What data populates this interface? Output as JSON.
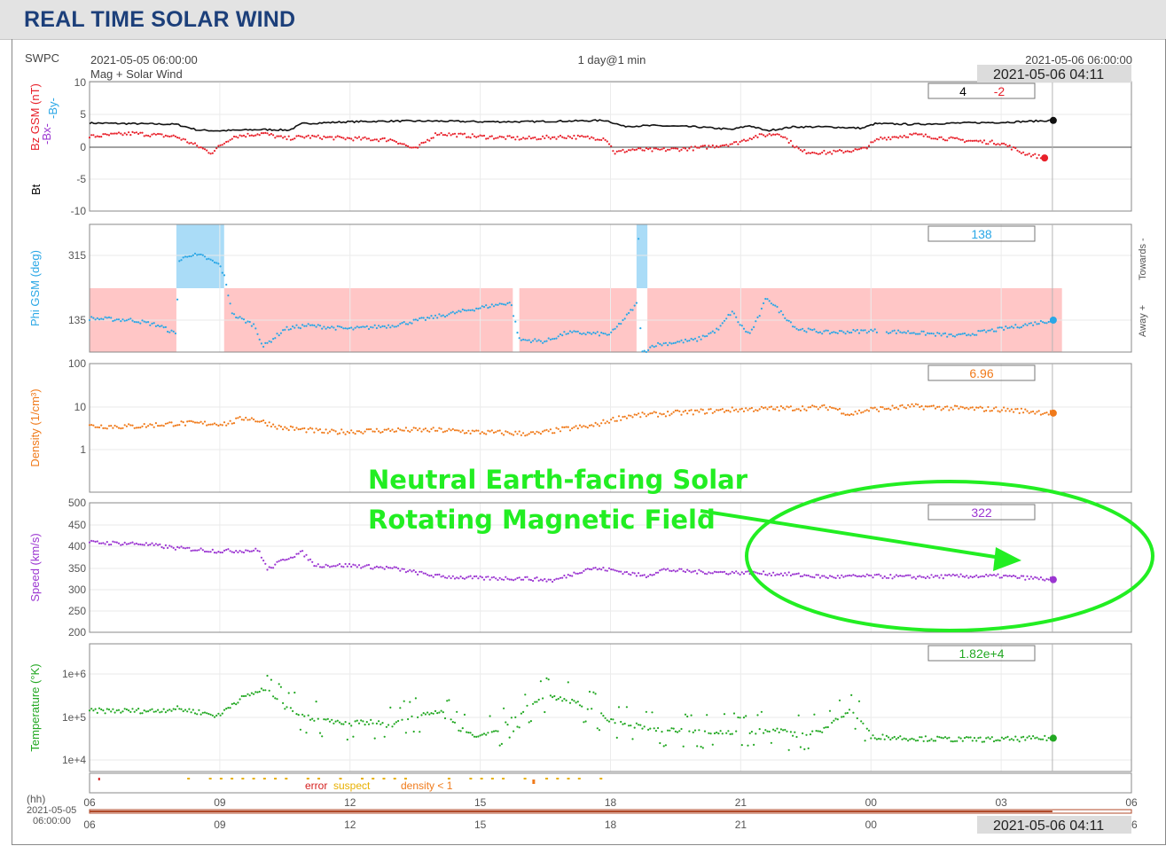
{
  "header": {
    "title": "REAL TIME SOLAR WIND"
  },
  "chart_data": {
    "type": "scatter",
    "source_label": "SWPC",
    "start_label": "2021-05-05 06:00:00",
    "subtitle": "Mag + Solar Wind",
    "window_label": "1 day@1 min",
    "end_label": "2021-05-06 06:00:00",
    "cursor_time": "2021-05-06 04:11",
    "x_axis": {
      "unit_label": "(hh)",
      "ticks": [
        "06",
        "09",
        "12",
        "15",
        "18",
        "21",
        "00",
        "03",
        "06"
      ],
      "start_date": "2021-05-05",
      "start_time": "06:00:00",
      "hours_range": [
        0,
        24
      ],
      "cursor_hour": 22.18
    },
    "panels": [
      {
        "id": "mag",
        "ylabels": [
          {
            "text": "Bt",
            "color": "#000000"
          },
          {
            "text": "Bz GSM (nT)",
            "color": "#e8202a"
          },
          {
            "text": "-Bx-",
            "color": "#9b35d1"
          },
          {
            "text": "-By-",
            "color": "#2aa7e6"
          }
        ],
        "yticks": [
          "10",
          "5",
          "0",
          "-5",
          "-10"
        ],
        "ylim": [
          -10,
          10
        ],
        "current": [
          "4",
          "-2"
        ],
        "current_colors": [
          "#000000",
          "#e8202a"
        ],
        "series": [
          {
            "name": "Bt",
            "color": "#111111",
            "style": "line",
            "points": [
              [
                0,
                3.6
              ],
              [
                1,
                3.5
              ],
              [
                2,
                3.4
              ],
              [
                2.5,
                2.5
              ],
              [
                3,
                2.4
              ],
              [
                4,
                2.6
              ],
              [
                4.6,
                2.5
              ],
              [
                4.9,
                3.5
              ],
              [
                6,
                3.8
              ],
              [
                7,
                3.9
              ],
              [
                8,
                3.9
              ],
              [
                9,
                3.8
              ],
              [
                10,
                3.8
              ],
              [
                11,
                3.9
              ],
              [
                11.9,
                4.0
              ],
              [
                12.3,
                3.1
              ],
              [
                13,
                3.2
              ],
              [
                14,
                3.0
              ],
              [
                14.8,
                2.6
              ],
              [
                15.2,
                3.2
              ],
              [
                15.6,
                2.4
              ],
              [
                16.2,
                3.0
              ],
              [
                17,
                3.0
              ],
              [
                17.8,
                2.8
              ],
              [
                18.1,
                3.5
              ],
              [
                19,
                3.4
              ],
              [
                20,
                3.6
              ],
              [
                21,
                3.7
              ],
              [
                22.2,
                4.0
              ]
            ]
          },
          {
            "name": "Bz",
            "color": "#e8202a",
            "style": "dots",
            "points": [
              [
                0,
                1.5
              ],
              [
                1,
                2.0
              ],
              [
                2,
                1.5
              ],
              [
                2.5,
                0
              ],
              [
                2.8,
                -1
              ],
              [
                3.3,
                1.5
              ],
              [
                4,
                2.0
              ],
              [
                4.5,
                1.2
              ],
              [
                5,
                1.5
              ],
              [
                6,
                1.2
              ],
              [
                7,
                1.0
              ],
              [
                7.5,
                -0.5
              ],
              [
                8,
                2.0
              ],
              [
                9,
                1.5
              ],
              [
                10,
                1.2
              ],
              [
                11,
                1.5
              ],
              [
                11.9,
                1.2
              ],
              [
                12.1,
                -1
              ],
              [
                12.5,
                -0.5
              ],
              [
                13,
                -0.6
              ],
              [
                14,
                -0.3
              ],
              [
                14.9,
                0.5
              ],
              [
                15.3,
                1.5
              ],
              [
                15.9,
                2.0
              ],
              [
                16.4,
                -0.8
              ],
              [
                17,
                -1.0
              ],
              [
                17.8,
                -0.5
              ],
              [
                18.2,
                1.2
              ],
              [
                19,
                1.8
              ],
              [
                20,
                1.0
              ],
              [
                21,
                0.5
              ],
              [
                21.5,
                -1.0
              ],
              [
                22,
                -1.8
              ]
            ]
          }
        ]
      },
      {
        "id": "phi",
        "ylabels": [
          {
            "text": "Phi GSM (deg)",
            "color": "#2aa7e6"
          }
        ],
        "yticks": [
          "315",
          "135"
        ],
        "ylim": [
          45,
          405
        ],
        "right_labels": [
          "Towards -",
          "Away +"
        ],
        "current": "138",
        "current_color": "#2aa7e6",
        "bands": [
          {
            "from": 0,
            "to": 2.0,
            "side": "away"
          },
          {
            "from": 2.0,
            "to": 3.1,
            "side": "towards"
          },
          {
            "from": 3.1,
            "to": 9.75,
            "side": "away"
          },
          {
            "from": 9.9,
            "to": 12.6,
            "side": "away"
          },
          {
            "from": 12.6,
            "to": 12.85,
            "side": "towards"
          },
          {
            "from": 12.85,
            "to": 22.4,
            "side": "away"
          }
        ],
        "series": [
          {
            "name": "Phi",
            "color": "#2aa7e6",
            "style": "dots",
            "points": [
              [
                0,
                140
              ],
              [
                1,
                135
              ],
              [
                1.6,
                120
              ],
              [
                2.0,
                95
              ],
              [
                2.05,
                300
              ],
              [
                2.3,
                320
              ],
              [
                2.6,
                315
              ],
              [
                3.0,
                290
              ],
              [
                3.1,
                260
              ],
              [
                3.3,
                150
              ],
              [
                3.8,
                120
              ],
              [
                4.0,
                60
              ],
              [
                4.5,
                110
              ],
              [
                5,
                120
              ],
              [
                6,
                110
              ],
              [
                7,
                120
              ],
              [
                8,
                145
              ],
              [
                9,
                170
              ],
              [
                9.7,
                185
              ],
              [
                9.9,
                80
              ],
              [
                10.5,
                75
              ],
              [
                11,
                100
              ],
              [
                12,
                95
              ],
              [
                12.4,
                150
              ],
              [
                12.6,
                180
              ],
              [
                12.65,
                390
              ],
              [
                12.7,
                40
              ],
              [
                13,
                65
              ],
              [
                14,
                80
              ],
              [
                14.5,
                110
              ],
              [
                14.8,
                160
              ],
              [
                15,
                120
              ],
              [
                15.2,
                95
              ],
              [
                15.4,
                140
              ],
              [
                15.6,
                200
              ],
              [
                15.9,
                160
              ],
              [
                16.3,
                110
              ],
              [
                17,
                100
              ],
              [
                18,
                105
              ],
              [
                19,
                100
              ],
              [
                20,
                90
              ],
              [
                21,
                110
              ],
              [
                22.2,
                135
              ]
            ]
          }
        ]
      },
      {
        "id": "density",
        "ylabels": [
          {
            "text": "Density (1/cm³)",
            "color": "#f07a1a"
          }
        ],
        "yticks": [
          "100",
          "10",
          "1"
        ],
        "ylim": [
          0.1,
          100
        ],
        "log": true,
        "current": "6.96",
        "current_color": "#f07a1a",
        "series": [
          {
            "name": "Density",
            "color": "#f07a1a",
            "style": "dots",
            "points": [
              [
                0,
                3.5
              ],
              [
                1,
                3.4
              ],
              [
                2,
                4.0
              ],
              [
                3.2,
                4.0
              ],
              [
                3.6,
                5.5
              ],
              [
                4.4,
                3.2
              ],
              [
                5.5,
                2.5
              ],
              [
                7,
                2.8
              ],
              [
                8,
                2.8
              ],
              [
                9,
                2.5
              ],
              [
                10.3,
                2.3
              ],
              [
                11,
                3.0
              ],
              [
                11.6,
                3.5
              ],
              [
                12.4,
                6.0
              ],
              [
                13,
                6.5
              ],
              [
                14,
                7.5
              ],
              [
                15,
                8.5
              ],
              [
                16,
                9.0
              ],
              [
                17.1,
                9.5
              ],
              [
                17.5,
                6.5
              ],
              [
                18,
                8.5
              ],
              [
                19,
                10.0
              ],
              [
                20,
                9.0
              ],
              [
                21,
                8.5
              ],
              [
                22.2,
                7.0
              ]
            ]
          }
        ]
      },
      {
        "id": "speed",
        "ylabels": [
          {
            "text": "Speed (km/s)",
            "color": "#9b35d1"
          }
        ],
        "yticks": [
          "500",
          "450",
          "400",
          "350",
          "300",
          "250",
          "200"
        ],
        "ylim": [
          200,
          500
        ],
        "current": "322",
        "current_color": "#9b35d1",
        "series": [
          {
            "name": "Speed",
            "color": "#9b35d1",
            "style": "dots",
            "points": [
              [
                0,
                408
              ],
              [
                1.2,
                405
              ],
              [
                2,
                395
              ],
              [
                3,
                388
              ],
              [
                3.9,
                390
              ],
              [
                4.1,
                345
              ],
              [
                4.5,
                370
              ],
              [
                4.9,
                385
              ],
              [
                5.2,
                355
              ],
              [
                6,
                355
              ],
              [
                7,
                348
              ],
              [
                8,
                330
              ],
              [
                9,
                325
              ],
              [
                10,
                325
              ],
              [
                10.7,
                320
              ],
              [
                11.5,
                348
              ],
              [
                12,
                345
              ],
              [
                12.8,
                330
              ],
              [
                13.2,
                345
              ],
              [
                14,
                340
              ],
              [
                15,
                338
              ],
              [
                16,
                335
              ],
              [
                17,
                328
              ],
              [
                18,
                330
              ],
              [
                19,
                328
              ],
              [
                20,
                330
              ],
              [
                21,
                330
              ],
              [
                22.2,
                322
              ]
            ]
          }
        ]
      },
      {
        "id": "temperature",
        "ylabels": [
          {
            "text": "Temperature (°K)",
            "color": "#22a822"
          }
        ],
        "yticks": [
          "1e+6",
          "1e+5",
          "1e+4"
        ],
        "ylim": [
          3000,
          3000000
        ],
        "log": true,
        "current": "1.82e+4",
        "current_color": "#22a822",
        "series": [
          {
            "name": "Temperature",
            "color": "#22a822",
            "style": "dots",
            "points": [
              [
                0,
                80000
              ],
              [
                1.5,
                80000
              ],
              [
                2,
                90000
              ],
              [
                3,
                60000
              ],
              [
                4,
                250000
              ],
              [
                4.5,
                100000
              ],
              [
                5,
                55000
              ],
              [
                6,
                40000
              ],
              [
                6.5,
                45000
              ],
              [
                7,
                35000
              ],
              [
                7.5,
                60000
              ],
              [
                8,
                80000
              ],
              [
                8.5,
                30000
              ],
              [
                9,
                20000
              ],
              [
                9.5,
                30000
              ],
              [
                10,
                80000
              ],
              [
                10.5,
                180000
              ],
              [
                11,
                150000
              ],
              [
                11.2,
                120000
              ],
              [
                12,
                45000
              ],
              [
                13,
                30000
              ],
              [
                14,
                25000
              ],
              [
                15,
                25000
              ],
              [
                15.8,
                28000
              ],
              [
                16.3,
                22000
              ],
              [
                17,
                30000
              ],
              [
                17.5,
                80000
              ],
              [
                18,
                20000
              ],
              [
                19,
                18000
              ],
              [
                20,
                17000
              ],
              [
                21,
                17000
              ],
              [
                22.2,
                18200
              ]
            ]
          }
        ]
      }
    ],
    "status_legend": [
      {
        "text": "error",
        "color": "#d42020"
      },
      {
        "text": "suspect",
        "color": "#e8b000"
      },
      {
        "text": "density < 1",
        "color": "#f07a1a"
      }
    ],
    "annotation": {
      "lines": [
        "Neutral Earth-facing Solar",
        "Rotating Magnetic Field"
      ],
      "color": "#22ee22"
    }
  }
}
